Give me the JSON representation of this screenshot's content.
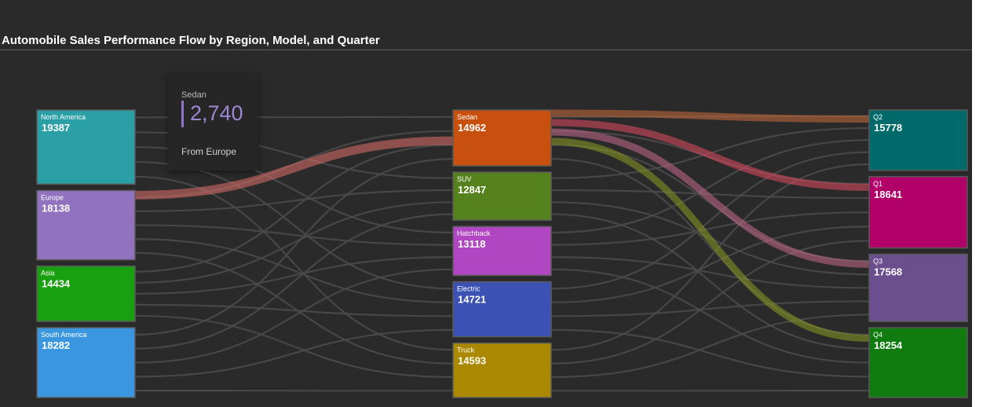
{
  "title": "Automobile Sales Performance Flow by Region, Model, and Quarter",
  "tooltip": {
    "label": "Sedan",
    "value": "2,740",
    "sub": "From Europe"
  },
  "chart_data": {
    "type": "sankey",
    "nodes": [
      {
        "name": "North America",
        "value": 19387,
        "color": "#2a9fa5",
        "column": 0
      },
      {
        "name": "Europe",
        "value": 18138,
        "color": "#9172be",
        "column": 0
      },
      {
        "name": "Asia",
        "value": 14434,
        "color": "#18a010",
        "column": 0
      },
      {
        "name": "South America",
        "value": 18282,
        "color": "#3a96de",
        "column": 0
      },
      {
        "name": "Sedan",
        "value": 14962,
        "color": "#c8500e",
        "column": 1
      },
      {
        "name": "SUV",
        "value": 12847,
        "color": "#56821e",
        "column": 1
      },
      {
        "name": "Hatchback",
        "value": 13118,
        "color": "#b146c2",
        "column": 1
      },
      {
        "name": "Electric",
        "value": 14721,
        "color": "#3b52b4",
        "column": 1
      },
      {
        "name": "Truck",
        "value": 14593,
        "color": "#aa8800",
        "column": 1
      },
      {
        "name": "Q2",
        "value": 15778,
        "color": "#006a6a",
        "column": 2
      },
      {
        "name": "Q1",
        "value": 18641,
        "color": "#b10068",
        "column": 2
      },
      {
        "name": "Q3",
        "value": 17568,
        "color": "#6b4e8e",
        "column": 2
      },
      {
        "name": "Q4",
        "value": 18254,
        "color": "#107c10",
        "column": 2
      }
    ],
    "links": [
      {
        "source": "Europe",
        "target": "Sedan",
        "value": 2740,
        "highlighted": true
      },
      {
        "source": "Sedan",
        "target": "Q2",
        "highlighted": true
      },
      {
        "source": "Sedan",
        "target": "Q1",
        "highlighted": true
      },
      {
        "source": "Sedan",
        "target": "Q3",
        "highlighted": true
      },
      {
        "source": "Sedan",
        "target": "Q4",
        "highlighted": true
      }
    ]
  }
}
